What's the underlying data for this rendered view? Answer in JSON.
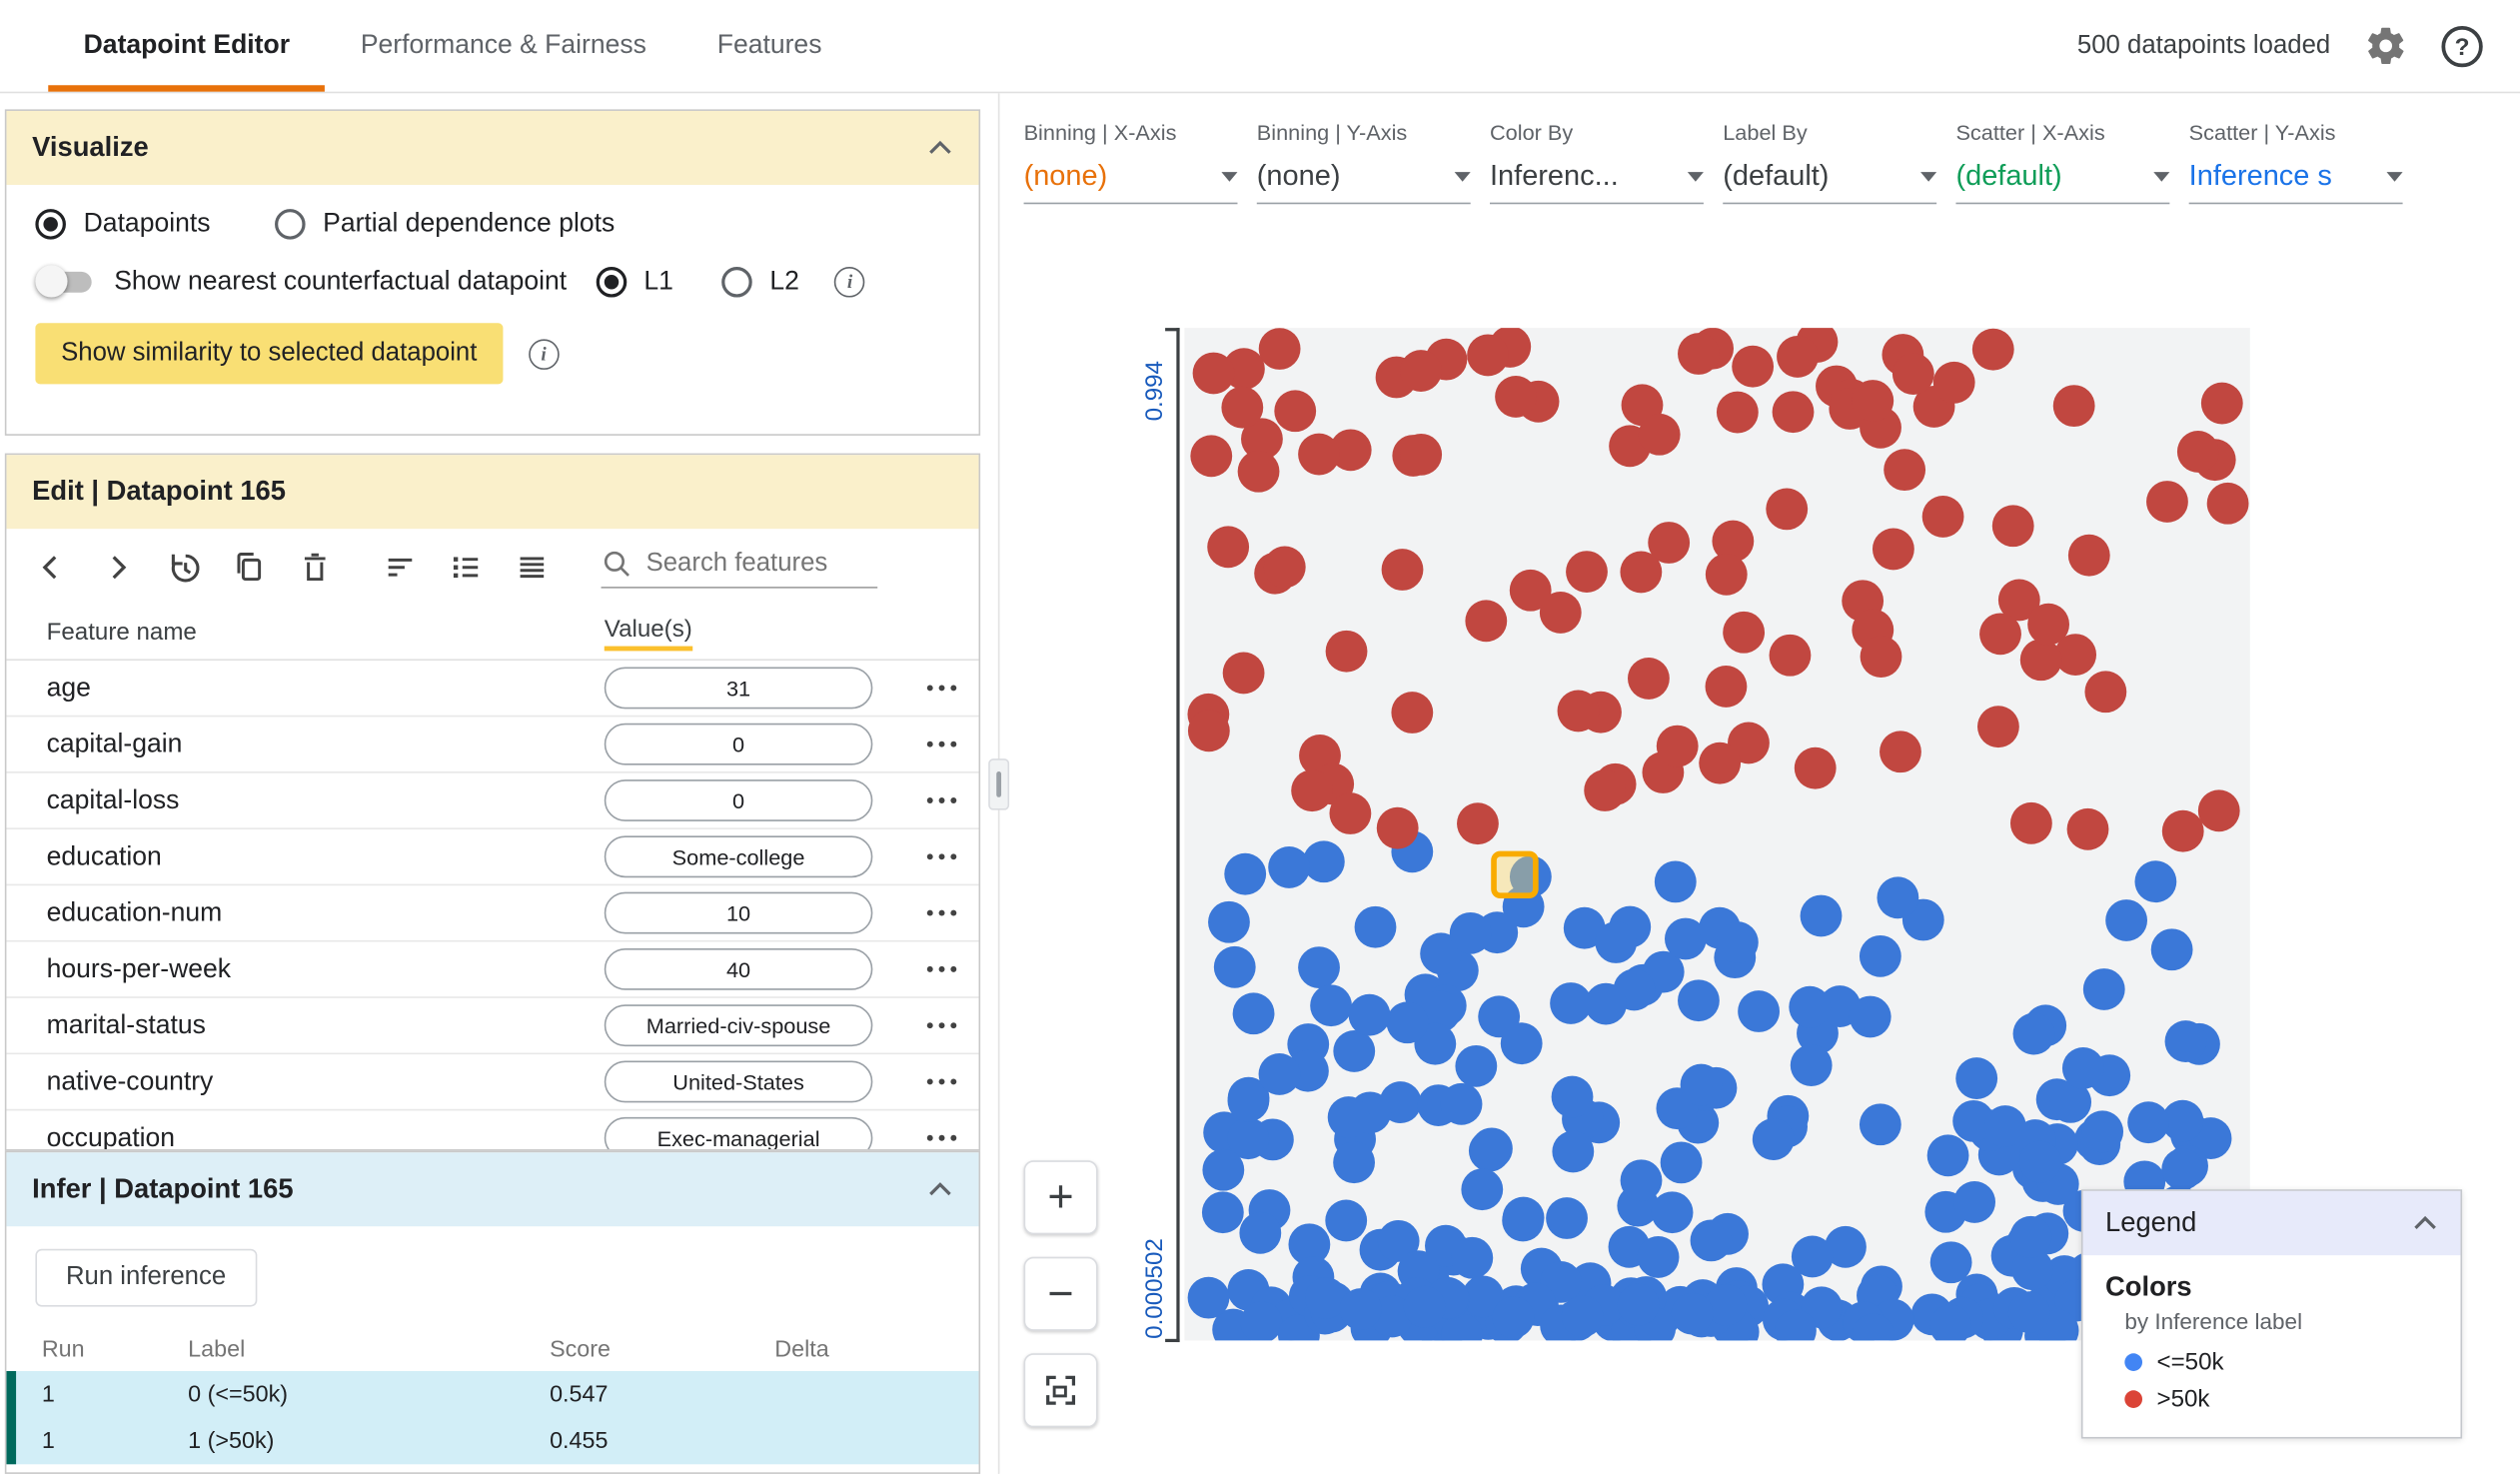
{
  "topbar": {
    "tabs": [
      {
        "label": "Datapoint Editor",
        "active": true
      },
      {
        "label": "Performance & Fairness",
        "active": false
      },
      {
        "label": "Features",
        "active": false
      }
    ],
    "status": "500 datapoints loaded"
  },
  "visualize": {
    "title": "Visualize",
    "datapoints_label": "Datapoints",
    "pdp_label": "Partial dependence plots",
    "counterfactual_label": "Show nearest counterfactual datapoint",
    "l1_label": "L1",
    "l2_label": "L2",
    "similarity_button": "Show similarity to selected datapoint"
  },
  "edit": {
    "title": "Edit | Datapoint 165",
    "search_placeholder": "Search features",
    "feature_col": "Feature name",
    "value_col": "Value(s)",
    "features": [
      {
        "name": "age",
        "value": "31"
      },
      {
        "name": "capital-gain",
        "value": "0"
      },
      {
        "name": "capital-loss",
        "value": "0"
      },
      {
        "name": "education",
        "value": "Some-college"
      },
      {
        "name": "education-num",
        "value": "10"
      },
      {
        "name": "hours-per-week",
        "value": "40"
      },
      {
        "name": "marital-status",
        "value": "Married-civ-spouse"
      },
      {
        "name": "native-country",
        "value": "United-States"
      },
      {
        "name": "occupation",
        "value": "Exec-managerial"
      }
    ]
  },
  "infer": {
    "title": "Infer | Datapoint 165",
    "run_button": "Run inference",
    "columns": [
      "Run",
      "Label",
      "Score",
      "Delta"
    ],
    "rows": [
      {
        "run": "1",
        "label": "0 (<=50k)",
        "score": "0.547",
        "delta": ""
      },
      {
        "run": "1",
        "label": "1 (>50k)",
        "score": "0.455",
        "delta": ""
      }
    ]
  },
  "controls": [
    {
      "label": "Binning | X-Axis",
      "value": "(none)",
      "color": "#e8710a"
    },
    {
      "label": "Binning | Y-Axis",
      "value": "(none)",
      "color": "#3c4043"
    },
    {
      "label": "Color By",
      "value": "Inferenc...",
      "color": "#3c4043"
    },
    {
      "label": "Label By",
      "value": "(default)",
      "color": "#3c4043"
    },
    {
      "label": "Scatter | X-Axis",
      "value": "(default)",
      "color": "#0f9d58"
    },
    {
      "label": "Scatter | Y-Axis",
      "value": "Inference s",
      "color": "#1a73e8"
    }
  ],
  "chart_data": {
    "type": "scatter",
    "title": "",
    "xlabel": "",
    "ylabel": "",
    "y_axis": {
      "top_label": "0.994",
      "bottom_label": "0.000502"
    },
    "ylim": [
      0.000502,
      0.994
    ],
    "series": [
      {
        "name": "<=50k",
        "color": "#3b78d8",
        "approx_count": 266,
        "region": "lower half, dense band at bottom"
      },
      {
        "name": ">50k",
        "color": "#c14740",
        "approx_count": 102,
        "region": "upper half"
      }
    ],
    "generator": {
      "seed": 20,
      "blue_main": 178,
      "blue_band": 88,
      "red_main": 102
    },
    "selected_point": {
      "x_frac": 0.31,
      "y_frac": 0.54,
      "marker_color": "#f9ab00"
    }
  },
  "legend": {
    "title": "Legend",
    "section": "Colors",
    "subtitle": "by Inference label",
    "items": [
      {
        "label": "<=50k",
        "color": "#4285f4"
      },
      {
        "label": ">50k",
        "color": "#db4437"
      }
    ]
  },
  "zoom": {
    "plus": "+",
    "minus": "−"
  }
}
